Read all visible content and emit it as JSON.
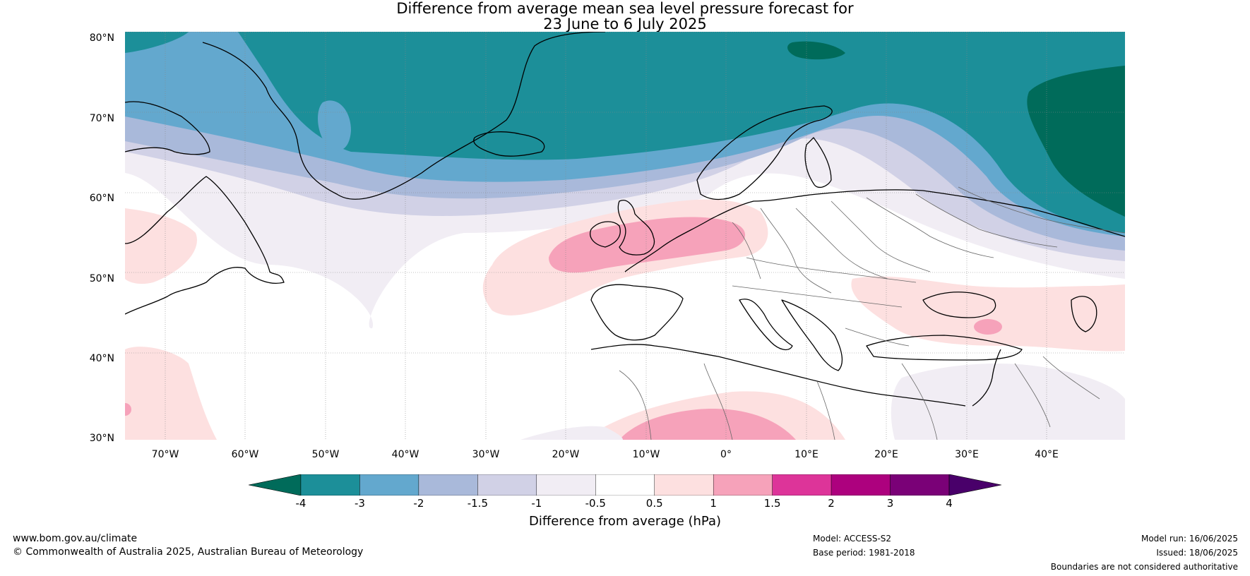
{
  "title_line1": "Difference from average mean sea level pressure forecast for",
  "title_line2": "23 June to 6 July 2025",
  "latitude_labels": [
    "80°N",
    "70°N",
    "60°N",
    "50°N",
    "40°N",
    "30°N"
  ],
  "longitude_labels": [
    "70°W",
    "60°W",
    "50°W",
    "40°W",
    "30°W",
    "20°W",
    "10°W",
    "0°",
    "10°E",
    "20°E",
    "30°E",
    "40°E"
  ],
  "colorbar": {
    "ticks": [
      "-4",
      "-3",
      "-2",
      "-1.5",
      "-1",
      "-0.5",
      "0.5",
      "1",
      "1.5",
      "2",
      "3",
      "4"
    ],
    "colors": [
      "#006b5a",
      "#1c8f99",
      "#63a8ce",
      "#a9b9da",
      "#d1d1e6",
      "#f1edf4",
      "#ffffff",
      "#fde0e0",
      "#f6a2ba",
      "#dd3499",
      "#ad017e",
      "#7a0177",
      "#49006a"
    ],
    "label": "Difference from average (hPa)"
  },
  "footer": {
    "website": "www.bom.gov.au/climate",
    "copyright": "© Commonwealth of Australia 2025, Australian Bureau of Meteorology",
    "model": "Model: ACCESS-S2",
    "base_period": "Base period: 1981-2018",
    "model_run": "Model run: 16/06/2025",
    "issued": "Issued: 18/06/2025",
    "disclaimer": "Boundaries are not considered authoritative"
  }
}
